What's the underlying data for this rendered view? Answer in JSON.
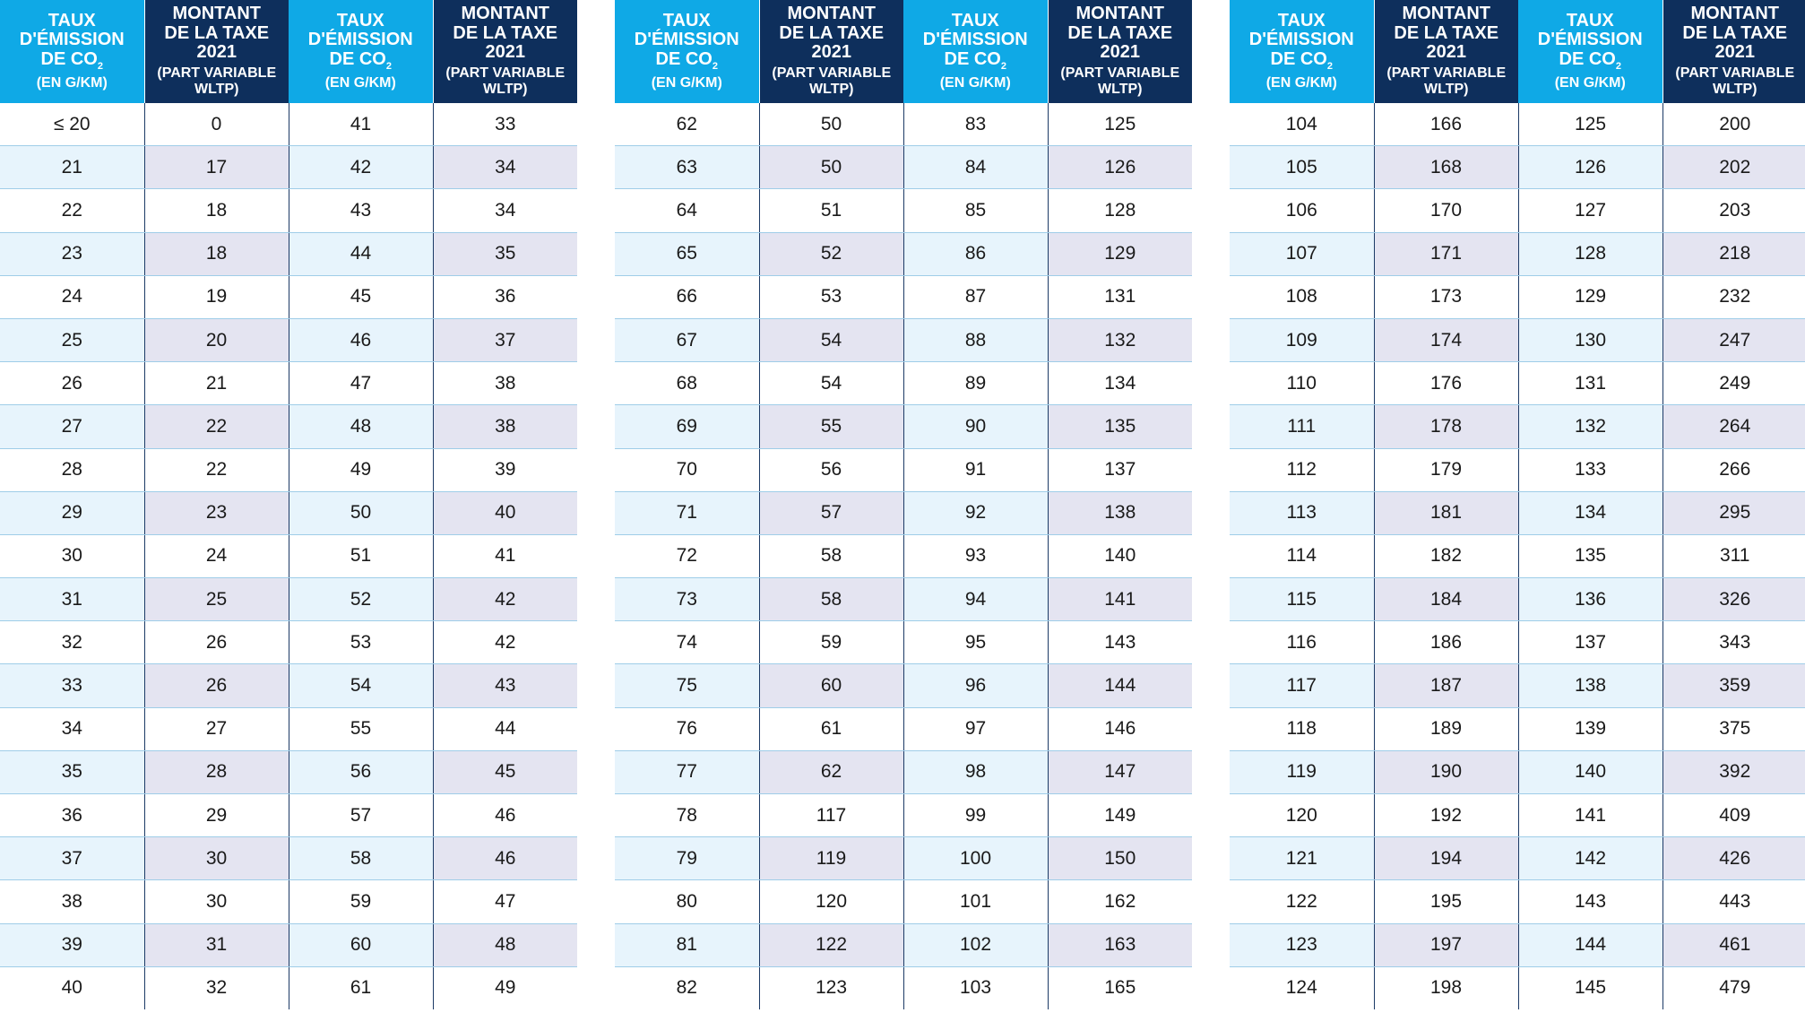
{
  "headers": {
    "co2_line1": "TAUX",
    "co2_line2": "D'ÉMISSION",
    "co2_line3": "DE CO",
    "co2_sub": "2",
    "co2_unit": "(EN G/KM)",
    "tax_line1": "MONTANT",
    "tax_line2": "DE LA TAXE",
    "tax_line3": "2021",
    "tax_note": "(PART VARIABLE WLTP)"
  },
  "colors": {
    "header_co2": "#0fa9e6",
    "header_tax": "#0e2f5c",
    "row_alt_co2": "#e7f4fc",
    "row_alt_tax": "#e4e4f1"
  },
  "tables": [
    {
      "rows": [
        [
          "≤ 20",
          "0",
          "41",
          "33"
        ],
        [
          "21",
          "17",
          "42",
          "34"
        ],
        [
          "22",
          "18",
          "43",
          "34"
        ],
        [
          "23",
          "18",
          "44",
          "35"
        ],
        [
          "24",
          "19",
          "45",
          "36"
        ],
        [
          "25",
          "20",
          "46",
          "37"
        ],
        [
          "26",
          "21",
          "47",
          "38"
        ],
        [
          "27",
          "22",
          "48",
          "38"
        ],
        [
          "28",
          "22",
          "49",
          "39"
        ],
        [
          "29",
          "23",
          "50",
          "40"
        ],
        [
          "30",
          "24",
          "51",
          "41"
        ],
        [
          "31",
          "25",
          "52",
          "42"
        ],
        [
          "32",
          "26",
          "53",
          "42"
        ],
        [
          "33",
          "26",
          "54",
          "43"
        ],
        [
          "34",
          "27",
          "55",
          "44"
        ],
        [
          "35",
          "28",
          "56",
          "45"
        ],
        [
          "36",
          "29",
          "57",
          "46"
        ],
        [
          "37",
          "30",
          "58",
          "46"
        ],
        [
          "38",
          "30",
          "59",
          "47"
        ],
        [
          "39",
          "31",
          "60",
          "48"
        ],
        [
          "40",
          "32",
          "61",
          "49"
        ]
      ]
    },
    {
      "rows": [
        [
          "62",
          "50",
          "83",
          "125"
        ],
        [
          "63",
          "50",
          "84",
          "126"
        ],
        [
          "64",
          "51",
          "85",
          "128"
        ],
        [
          "65",
          "52",
          "86",
          "129"
        ],
        [
          "66",
          "53",
          "87",
          "131"
        ],
        [
          "67",
          "54",
          "88",
          "132"
        ],
        [
          "68",
          "54",
          "89",
          "134"
        ],
        [
          "69",
          "55",
          "90",
          "135"
        ],
        [
          "70",
          "56",
          "91",
          "137"
        ],
        [
          "71",
          "57",
          "92",
          "138"
        ],
        [
          "72",
          "58",
          "93",
          "140"
        ],
        [
          "73",
          "58",
          "94",
          "141"
        ],
        [
          "74",
          "59",
          "95",
          "143"
        ],
        [
          "75",
          "60",
          "96",
          "144"
        ],
        [
          "76",
          "61",
          "97",
          "146"
        ],
        [
          "77",
          "62",
          "98",
          "147"
        ],
        [
          "78",
          "117",
          "99",
          "149"
        ],
        [
          "79",
          "119",
          "100",
          "150"
        ],
        [
          "80",
          "120",
          "101",
          "162"
        ],
        [
          "81",
          "122",
          "102",
          "163"
        ],
        [
          "82",
          "123",
          "103",
          "165"
        ]
      ]
    },
    {
      "rows": [
        [
          "104",
          "166",
          "125",
          "200"
        ],
        [
          "105",
          "168",
          "126",
          "202"
        ],
        [
          "106",
          "170",
          "127",
          "203"
        ],
        [
          "107",
          "171",
          "128",
          "218"
        ],
        [
          "108",
          "173",
          "129",
          "232"
        ],
        [
          "109",
          "174",
          "130",
          "247"
        ],
        [
          "110",
          "176",
          "131",
          "249"
        ],
        [
          "111",
          "178",
          "132",
          "264"
        ],
        [
          "112",
          "179",
          "133",
          "266"
        ],
        [
          "113",
          "181",
          "134",
          "295"
        ],
        [
          "114",
          "182",
          "135",
          "311"
        ],
        [
          "115",
          "184",
          "136",
          "326"
        ],
        [
          "116",
          "186",
          "137",
          "343"
        ],
        [
          "117",
          "187",
          "138",
          "359"
        ],
        [
          "118",
          "189",
          "139",
          "375"
        ],
        [
          "119",
          "190",
          "140",
          "392"
        ],
        [
          "120",
          "192",
          "141",
          "409"
        ],
        [
          "121",
          "194",
          "142",
          "426"
        ],
        [
          "122",
          "195",
          "143",
          "443"
        ],
        [
          "123",
          "197",
          "144",
          "461"
        ],
        [
          "124",
          "198",
          "145",
          "479"
        ]
      ]
    }
  ]
}
